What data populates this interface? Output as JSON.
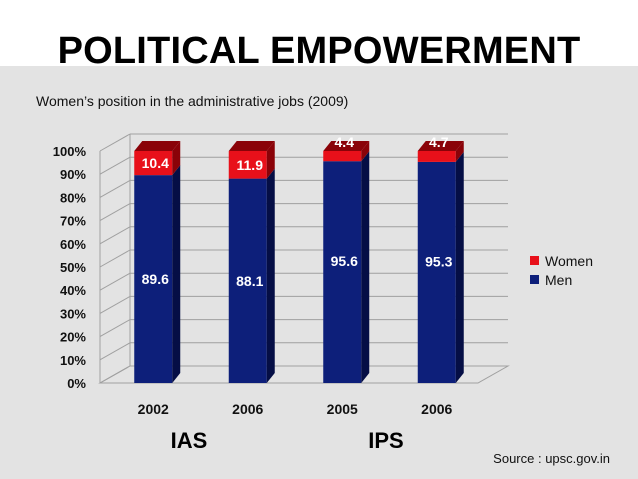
{
  "page": {
    "title": "POLITICAL EMPOWERMENT",
    "subtitle": "Women’s position in the administrative jobs (2009)",
    "source": "Source : upsc.gov.in"
  },
  "colors": {
    "men": "#0d1f7a",
    "men_side": "#050e45",
    "women": "#e8101a",
    "women_side": "#8a0208",
    "grid": "#a0a0a0"
  },
  "chart_data": {
    "type": "bar",
    "stacked": true,
    "title": "",
    "categories": [
      "2002",
      "2006",
      "2005",
      "2006"
    ],
    "groups": [
      {
        "label": "IAS",
        "categories": [
          0,
          1
        ]
      },
      {
        "label": "IPS",
        "categories": [
          2,
          3
        ]
      }
    ],
    "series": [
      {
        "name": "Men",
        "values": [
          89.6,
          88.1,
          95.6,
          95.3
        ]
      },
      {
        "name": "Women",
        "values": [
          10.4,
          11.9,
          4.4,
          4.7
        ]
      }
    ],
    "value_labels": {
      "Men": [
        "89.6",
        "88.1",
        "95.6",
        "95.3"
      ],
      "Women": [
        "10.4",
        "11.9",
        "4.4",
        "4.7"
      ]
    },
    "y_ticks": [
      "0%",
      "10%",
      "20%",
      "30%",
      "40%",
      "50%",
      "60%",
      "70%",
      "80%",
      "90%",
      "100%"
    ],
    "ylim": [
      0,
      100
    ],
    "xlabel": "",
    "ylabel": "",
    "legend": {
      "position": "right",
      "entries": [
        "Women",
        "Men"
      ]
    }
  }
}
